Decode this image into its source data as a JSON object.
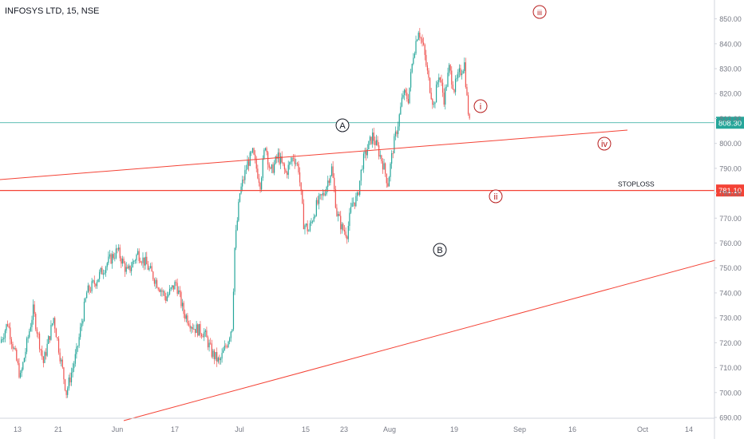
{
  "header": {
    "symbol_title": "INFOSYS LTD, 15, NSE"
  },
  "colors": {
    "background": "#ffffff",
    "candle_up": "#26a69a",
    "candle_down": "#ef5350",
    "trendline": "#f44336",
    "stoploss_line": "#f44336",
    "current_price_line": "#26a69a",
    "wave_label": "#b71c1c",
    "wave_label_black": "#131722",
    "axis_text": "#787b86",
    "axis_line": "#d1d4dc"
  },
  "chart_data": {
    "type": "candlestick",
    "title": "INFOSYS LTD, 15, NSE",
    "ylim": [
      690,
      855
    ],
    "y_ticks": [
      "690.00",
      "700.00",
      "710.00",
      "720.00",
      "730.00",
      "740.00",
      "750.00",
      "760.00",
      "770.00",
      "780.00",
      "790.00",
      "800.00",
      "810.00",
      "820.00",
      "830.00",
      "840.00",
      "850.00"
    ],
    "x_ticks": [
      "13",
      "21",
      "Jun",
      "17",
      "Jul",
      "15",
      "23",
      "Aug",
      "19",
      "Sep",
      "16",
      "Oct",
      "14"
    ],
    "price_path": [
      {
        "t": 0,
        "p": 720
      },
      {
        "t": 3,
        "p": 728
      },
      {
        "t": 8,
        "p": 706
      },
      {
        "t": 13,
        "p": 733
      },
      {
        "t": 17,
        "p": 712
      },
      {
        "t": 21,
        "p": 730
      },
      {
        "t": 26,
        "p": 700
      },
      {
        "t": 30,
        "p": 716
      },
      {
        "t": 34,
        "p": 740
      },
      {
        "t": 37,
        "p": 744
      },
      {
        "t": 42,
        "p": 752
      },
      {
        "t": 46,
        "p": 757
      },
      {
        "t": 50,
        "p": 748
      },
      {
        "t": 54,
        "p": 756
      },
      {
        "t": 57,
        "p": 752
      },
      {
        "t": 61,
        "p": 745
      },
      {
        "t": 65,
        "p": 738
      },
      {
        "t": 69,
        "p": 744
      },
      {
        "t": 72,
        "p": 732
      },
      {
        "t": 76,
        "p": 726
      },
      {
        "t": 80,
        "p": 724
      },
      {
        "t": 83,
        "p": 716
      },
      {
        "t": 86,
        "p": 712
      },
      {
        "t": 89,
        "p": 720
      },
      {
        "t": 91,
        "p": 727
      },
      {
        "t": 92,
        "p": 758
      },
      {
        "t": 94,
        "p": 780
      },
      {
        "t": 97,
        "p": 792
      },
      {
        "t": 99,
        "p": 796
      },
      {
        "t": 102,
        "p": 784
      },
      {
        "t": 104,
        "p": 800
      },
      {
        "t": 106,
        "p": 788
      },
      {
        "t": 109,
        "p": 795
      },
      {
        "t": 112,
        "p": 788
      },
      {
        "t": 115,
        "p": 795
      },
      {
        "t": 117,
        "p": 790
      },
      {
        "t": 119,
        "p": 768
      },
      {
        "t": 121,
        "p": 765
      },
      {
        "t": 124,
        "p": 775
      },
      {
        "t": 127,
        "p": 780
      },
      {
        "t": 130,
        "p": 790
      },
      {
        "t": 132,
        "p": 772
      },
      {
        "t": 134,
        "p": 766
      },
      {
        "t": 136,
        "p": 764
      },
      {
        "t": 138,
        "p": 776
      },
      {
        "t": 140,
        "p": 778
      },
      {
        "t": 142,
        "p": 792
      },
      {
        "t": 144,
        "p": 798
      },
      {
        "t": 146,
        "p": 803
      },
      {
        "t": 148,
        "p": 798
      },
      {
        "t": 150,
        "p": 792
      },
      {
        "t": 152,
        "p": 784
      },
      {
        "t": 154,
        "p": 798
      },
      {
        "t": 156,
        "p": 808
      },
      {
        "t": 158,
        "p": 820
      },
      {
        "t": 160,
        "p": 818
      },
      {
        "t": 162,
        "p": 836
      },
      {
        "t": 164,
        "p": 846
      },
      {
        "t": 166,
        "p": 838
      },
      {
        "t": 168,
        "p": 825
      },
      {
        "t": 170,
        "p": 815
      },
      {
        "t": 172,
        "p": 828
      },
      {
        "t": 174,
        "p": 818
      },
      {
        "t": 176,
        "p": 830
      },
      {
        "t": 178,
        "p": 822
      },
      {
        "t": 180,
        "p": 828
      },
      {
        "t": 182,
        "p": 832
      },
      {
        "t": 183,
        "p": 818
      },
      {
        "t": 184,
        "p": 808
      }
    ],
    "horizontal_lines": [
      {
        "price": 808.3,
        "label": "808.30",
        "kind": "current_price"
      },
      {
        "price": 781.1,
        "label": "781.10",
        "kind": "stoploss"
      }
    ],
    "annotations": {
      "stoploss_text": "STOPLOSS",
      "wave_labels": [
        {
          "text": "A",
          "price": 802,
          "t": 104,
          "style": "black"
        },
        {
          "text": "B",
          "price": 762,
          "t": 134,
          "style": "black"
        },
        {
          "text": "i",
          "price": 804,
          "t": 146,
          "style": "red"
        },
        {
          "text": "ii",
          "price": 781,
          "t": 150,
          "style": "red"
        },
        {
          "text": "iii",
          "price": 847,
          "t": 164,
          "style": "red"
        },
        {
          "text": "iv",
          "price": 807,
          "t": 184,
          "style": "red"
        }
      ]
    }
  }
}
